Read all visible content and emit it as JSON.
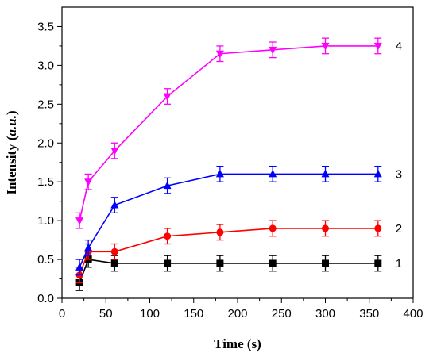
{
  "chart_data": {
    "type": "line",
    "xlabel": "Time (s)",
    "ylabel_main": "Intensity (",
    "ylabel_italic": "a.u.",
    "ylabel_end": ")",
    "xlim": [
      0,
      400
    ],
    "ylim": [
      0,
      3.75
    ],
    "xticks": [
      "0",
      "50",
      "100",
      "150",
      "200",
      "250",
      "300",
      "350",
      "400"
    ],
    "yticks": [
      "0.0",
      "0.5",
      "1.0",
      "1.5",
      "2.0",
      "2.5",
      "3.0",
      "3.5"
    ],
    "x": [
      20,
      30,
      60,
      120,
      180,
      240,
      300,
      360
    ],
    "series": [
      {
        "label": "1",
        "color": "#000000",
        "marker": "square",
        "values": [
          0.2,
          0.5,
          0.45,
          0.45,
          0.45,
          0.45,
          0.45,
          0.45
        ],
        "errors": [
          0.1,
          0.1,
          0.1,
          0.1,
          0.1,
          0.1,
          0.1,
          0.1
        ]
      },
      {
        "label": "2",
        "color": "#ff0000",
        "marker": "circle",
        "values": [
          0.3,
          0.6,
          0.6,
          0.8,
          0.85,
          0.9,
          0.9,
          0.9
        ],
        "errors": [
          0.1,
          0.1,
          0.1,
          0.1,
          0.1,
          0.1,
          0.1,
          0.1
        ]
      },
      {
        "label": "3",
        "color": "#0000ff",
        "marker": "triangle-up",
        "values": [
          0.4,
          0.65,
          1.2,
          1.45,
          1.6,
          1.6,
          1.6,
          1.6
        ],
        "errors": [
          0.1,
          0.1,
          0.1,
          0.1,
          0.1,
          0.1,
          0.1,
          0.1
        ]
      },
      {
        "label": "4",
        "color": "#ff00ff",
        "marker": "triangle-down",
        "values": [
          1.0,
          1.5,
          1.9,
          2.6,
          3.15,
          3.2,
          3.25,
          3.25
        ],
        "errors": [
          0.1,
          0.1,
          0.1,
          0.1,
          0.1,
          0.1,
          0.1,
          0.1
        ]
      }
    ],
    "grid": false,
    "legend": "none"
  }
}
